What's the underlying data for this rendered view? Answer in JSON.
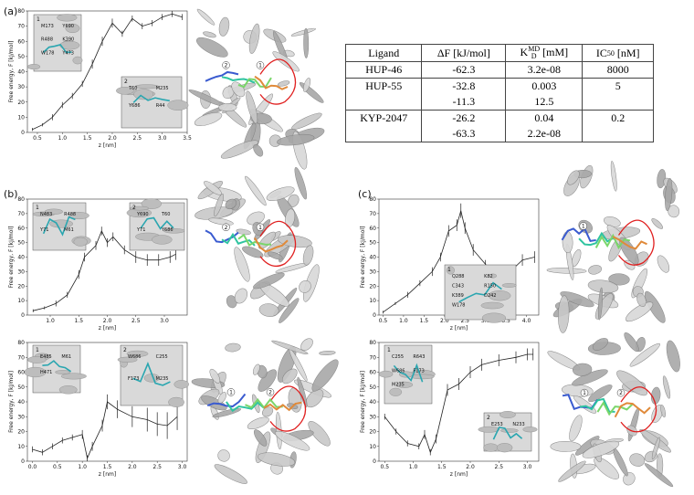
{
  "panel_labels": [
    "(a)",
    "(b)",
    "(c)"
  ],
  "chart_data": [
    {
      "type": "line",
      "xlabel": "z [nm]",
      "ylabel": "Free energy, F [kJ/mol]",
      "x": [
        0.4,
        0.6,
        0.8,
        1.0,
        1.2,
        1.4,
        1.6,
        1.8,
        2.0,
        2.2,
        2.4,
        2.6,
        2.8,
        3.0,
        3.2,
        3.4
      ],
      "values": [
        2,
        5,
        10,
        18,
        24,
        32,
        45,
        60,
        72,
        65,
        75,
        70,
        72,
        76,
        78,
        76
      ],
      "errors": [
        1,
        1,
        2,
        2,
        2,
        2,
        3,
        3,
        3,
        2,
        2,
        2,
        2,
        2,
        2,
        2
      ],
      "xlim": [
        0.3,
        3.5
      ],
      "ylim": [
        0,
        80
      ],
      "xticks": [
        0.5,
        {
          "value": 1.0,
          "label": "1.0"
        },
        1.5,
        {
          "value": 2.0,
          "label": "2.0"
        },
        2.5,
        {
          "value": 3.0,
          "label": "3.0"
        },
        3.5
      ],
      "yticks": [
        0,
        10,
        20,
        30,
        40,
        50,
        60,
        70,
        80
      ],
      "color": "#222222",
      "insets": [
        {
          "number": "1",
          "labels": [
            "M173",
            "Y690",
            "R488",
            "K390",
            "W178",
            "Y473"
          ]
        },
        {
          "number": "2",
          "labels": [
            "T60",
            "M235",
            "Y686",
            "R44"
          ]
        }
      ],
      "structure_labels": [
        "2",
        "1"
      ]
    },
    {
      "type": "line",
      "xlabel": "z [nm]",
      "ylabel": "Free energy, F [kJ/mol]",
      "x": [
        0.7,
        0.9,
        1.1,
        1.3,
        1.5,
        1.6,
        1.8,
        1.9,
        2.0,
        2.1,
        2.3,
        2.5,
        2.7,
        2.9,
        3.1,
        3.2
      ],
      "values": [
        3,
        5,
        8,
        14,
        28,
        40,
        48,
        58,
        50,
        54,
        45,
        40,
        38,
        38,
        40,
        42
      ],
      "errors": [
        1,
        1,
        2,
        2,
        3,
        3,
        3,
        3,
        3,
        3,
        3,
        4,
        4,
        4,
        4,
        4
      ],
      "xlim": [
        0.6,
        3.4
      ],
      "ylim": [
        0,
        80
      ],
      "xticks": [
        {
          "value": 1.0,
          "label": "1.0"
        },
        1.5,
        {
          "value": 2.0,
          "label": "2.0"
        },
        2.5,
        {
          "value": 3.0,
          "label": "3.0"
        }
      ],
      "yticks": [
        0,
        10,
        20,
        30,
        40,
        50,
        60,
        70,
        80
      ],
      "color": "#222222",
      "insets": [
        {
          "number": "1",
          "labels": [
            "N483",
            "R488",
            "Y71",
            "M61"
          ]
        },
        {
          "number": "2",
          "labels": [
            "Y690",
            "T60",
            "Y71",
            "Y686"
          ]
        }
      ],
      "structure_labels": [
        "2",
        "1"
      ]
    },
    {
      "type": "line",
      "xlabel": "z [nm]",
      "ylabel": "Free energy, F [kJ/mol]",
      "x": [
        0.0,
        0.2,
        0.4,
        0.6,
        0.8,
        1.0,
        1.1,
        1.2,
        1.4,
        1.5,
        1.7,
        2.0,
        2.3,
        2.5,
        2.7,
        2.9
      ],
      "values": [
        8,
        6,
        10,
        14,
        16,
        18,
        2,
        10,
        24,
        40,
        35,
        30,
        28,
        25,
        24,
        30
      ],
      "errors": [
        2,
        2,
        2,
        2,
        2,
        3,
        2,
        3,
        4,
        5,
        6,
        7,
        8,
        8,
        9,
        9
      ],
      "xlim": [
        -0.1,
        3.1
      ],
      "ylim": [
        0,
        80
      ],
      "xticks": [
        {
          "value": 0.0,
          "label": "0.0"
        },
        0.5,
        {
          "value": 1.0,
          "label": "1.0"
        },
        1.5,
        {
          "value": 2.0,
          "label": "2.0"
        },
        2.5,
        {
          "value": 3.0,
          "label": "3.0"
        }
      ],
      "yticks": [
        0,
        10,
        20,
        30,
        40,
        50,
        60,
        70,
        80
      ],
      "color": "#222222",
      "insets": [
        {
          "number": "1",
          "labels": [
            "E485",
            "M61",
            "H471"
          ]
        },
        {
          "number": "2",
          "labels": [
            "W686",
            "C255",
            "F173",
            "M235"
          ]
        }
      ],
      "structure_labels": [
        "1",
        "2"
      ]
    },
    {
      "type": "line",
      "xlabel": "z [nm]",
      "ylabel": "Free energy, F [kJ/mol]",
      "x": [
        0.5,
        0.8,
        1.1,
        1.4,
        1.7,
        1.9,
        2.1,
        2.3,
        2.4,
        2.5,
        2.7,
        3.0,
        3.3,
        3.6,
        3.9,
        4.2
      ],
      "values": [
        2,
        8,
        14,
        22,
        30,
        40,
        58,
        62,
        72,
        60,
        45,
        35,
        25,
        30,
        38,
        40
      ],
      "errors": [
        1,
        1,
        2,
        2,
        3,
        3,
        4,
        4,
        5,
        4,
        4,
        3,
        3,
        3,
        4,
        4
      ],
      "xlim": [
        0.4,
        4.3
      ],
      "ylim": [
        0,
        80
      ],
      "xticks": [
        0.5,
        {
          "value": 1.0,
          "label": "1.0"
        },
        1.5,
        {
          "value": 2.0,
          "label": "2.0"
        },
        2.5,
        {
          "value": 3.0,
          "label": "3.0"
        },
        3.5,
        {
          "value": 4.0,
          "label": "4.0"
        }
      ],
      "yticks": [
        0,
        10,
        20,
        30,
        40,
        50,
        60,
        70,
        80
      ],
      "color": "#222222",
      "insets": [
        {
          "number": "1",
          "labels": [
            "Q288",
            "K82",
            "C343",
            "R150",
            "K389",
            "D242",
            "W178"
          ]
        }
      ],
      "structure_labels": [
        "1"
      ]
    },
    {
      "type": "line",
      "xlabel": "z [nm]",
      "ylabel": "Free energy, F [kJ/mol]",
      "x": [
        0.5,
        0.7,
        0.9,
        1.1,
        1.2,
        1.3,
        1.4,
        1.6,
        1.8,
        2.0,
        2.2,
        2.5,
        2.8,
        3.0,
        3.1
      ],
      "values": [
        30,
        20,
        12,
        10,
        18,
        6,
        15,
        48,
        52,
        60,
        65,
        68,
        70,
        72,
        72
      ],
      "errors": [
        2,
        2,
        2,
        2,
        3,
        2,
        3,
        4,
        4,
        4,
        4,
        4,
        4,
        4,
        4
      ],
      "xlim": [
        0.4,
        3.2
      ],
      "ylim": [
        0,
        80
      ],
      "xticks": [
        0.5,
        {
          "value": 1.0,
          "label": "1.0"
        },
        1.5,
        {
          "value": 2.0,
          "label": "2.0"
        },
        2.5,
        {
          "value": 3.0,
          "label": "3.0"
        }
      ],
      "yticks": [
        0,
        10,
        20,
        30,
        40,
        50,
        60,
        70,
        80
      ],
      "color": "#222222",
      "insets": [
        {
          "number": "1",
          "labels": [
            "C255",
            "R643",
            "W686",
            "F173",
            "M235"
          ]
        },
        {
          "number": "2",
          "labels": [
            "E253",
            "N233"
          ]
        }
      ],
      "structure_labels": [
        "1",
        "2"
      ]
    }
  ],
  "table": {
    "header": [
      {
        "text": "Ligand"
      },
      {
        "text": "ΔF [kJ/mol]"
      },
      {
        "text": "K",
        "sub": "D",
        "sup": "MD",
        "unit": " [mM]"
      },
      {
        "text": "IC",
        "sub": "50",
        "unit": " [nM]"
      }
    ],
    "rows": [
      [
        "HUP-46",
        "-62.3",
        "3.2e-08",
        "8000"
      ],
      [
        "HUP-55",
        "-32.8",
        "0.003",
        "5"
      ],
      [
        null,
        "-11.3",
        "12.5",
        null
      ],
      [
        "KYP-2047",
        "-26.2",
        "0.04",
        "0.2"
      ],
      [
        null,
        "-63.3",
        "2.2e-08",
        null
      ]
    ]
  }
}
